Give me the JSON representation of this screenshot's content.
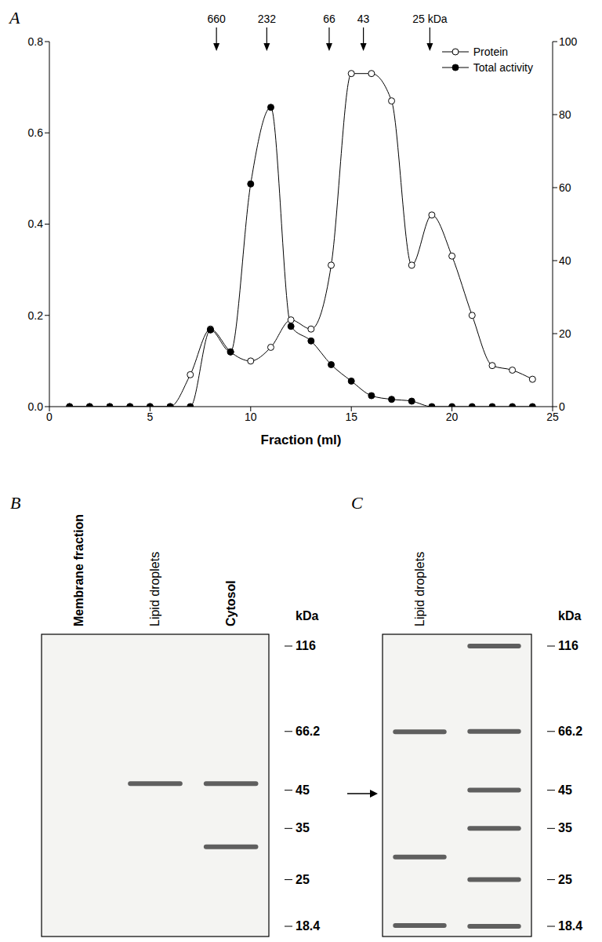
{
  "chart_data": {
    "type": "line",
    "title": "A",
    "x_label": "Fraction (ml)",
    "xlim": [
      0,
      25
    ],
    "xticks": [
      0,
      5,
      10,
      15,
      20,
      25
    ],
    "ylim": [
      0,
      0.8
    ],
    "yticks": [
      {
        "value": 0,
        "label": "0.0"
      },
      0.2,
      0.4,
      0.6,
      0.8
    ],
    "y2lim": [
      0,
      100
    ],
    "y2ticks": [
      0,
      20,
      40,
      60,
      80,
      100
    ],
    "legend": "upper right",
    "x": [
      1,
      2,
      3,
      4,
      5,
      6,
      7,
      8,
      9,
      10,
      11,
      12,
      13,
      14,
      15,
      16,
      17,
      18,
      19,
      20,
      21,
      22,
      23,
      24
    ],
    "series": [
      {
        "name": "Protein",
        "color": "#000000",
        "marker": "circle-open",
        "values": [
          0,
          0,
          0,
          0,
          0,
          0,
          0.07,
          0.17,
          0.12,
          0.1,
          0.13,
          0.19,
          0.17,
          0.31,
          0.73,
          0.73,
          0.67,
          0.31,
          0.42,
          0.33,
          0.2,
          0.09,
          0.08,
          0.06
        ]
      },
      {
        "name": "Total activity",
        "color": "#000000",
        "marker": "circle-filled",
        "axis": "y2",
        "values": [
          0,
          0,
          0,
          0,
          0,
          0,
          0,
          21,
          15,
          61,
          82,
          22,
          18,
          11.5,
          7,
          3,
          2,
          1.5,
          0,
          0,
          0,
          0,
          0,
          0
        ]
      }
    ],
    "annotations": [
      {
        "x": 8.3,
        "label": "660"
      },
      {
        "x": 10.8,
        "label": "232"
      },
      {
        "x": 13.9,
        "label": "66"
      },
      {
        "x": 15.6,
        "label": "43"
      },
      {
        "x": 18.9,
        "label": "25 kDa"
      }
    ]
  },
  "gels": [
    {
      "panel": "B",
      "unit": "kDa",
      "markers": [
        116,
        66.2,
        45,
        35,
        25,
        18.4
      ],
      "lanes": [
        {
          "label": "Membrane fraction",
          "bold": true,
          "bands": []
        },
        {
          "label": "Lipid droplets",
          "bold": false,
          "bands": [
            47
          ]
        },
        {
          "label": "Cytosol",
          "bold": true,
          "bands": [
            47,
            31
          ]
        }
      ]
    },
    {
      "panel": "C",
      "unit": "kDa",
      "markers": [
        116,
        66.2,
        45,
        35,
        25,
        18.4
      ],
      "arrow": 44,
      "lanes": [
        {
          "label": "Lipid droplets",
          "bold": false,
          "bands": [
            66,
            29,
            18.5
          ]
        },
        {
          "label": null,
          "bold": false,
          "bands": [
            116,
            66.2,
            45,
            35,
            25,
            18.4
          ]
        }
      ]
    }
  ]
}
